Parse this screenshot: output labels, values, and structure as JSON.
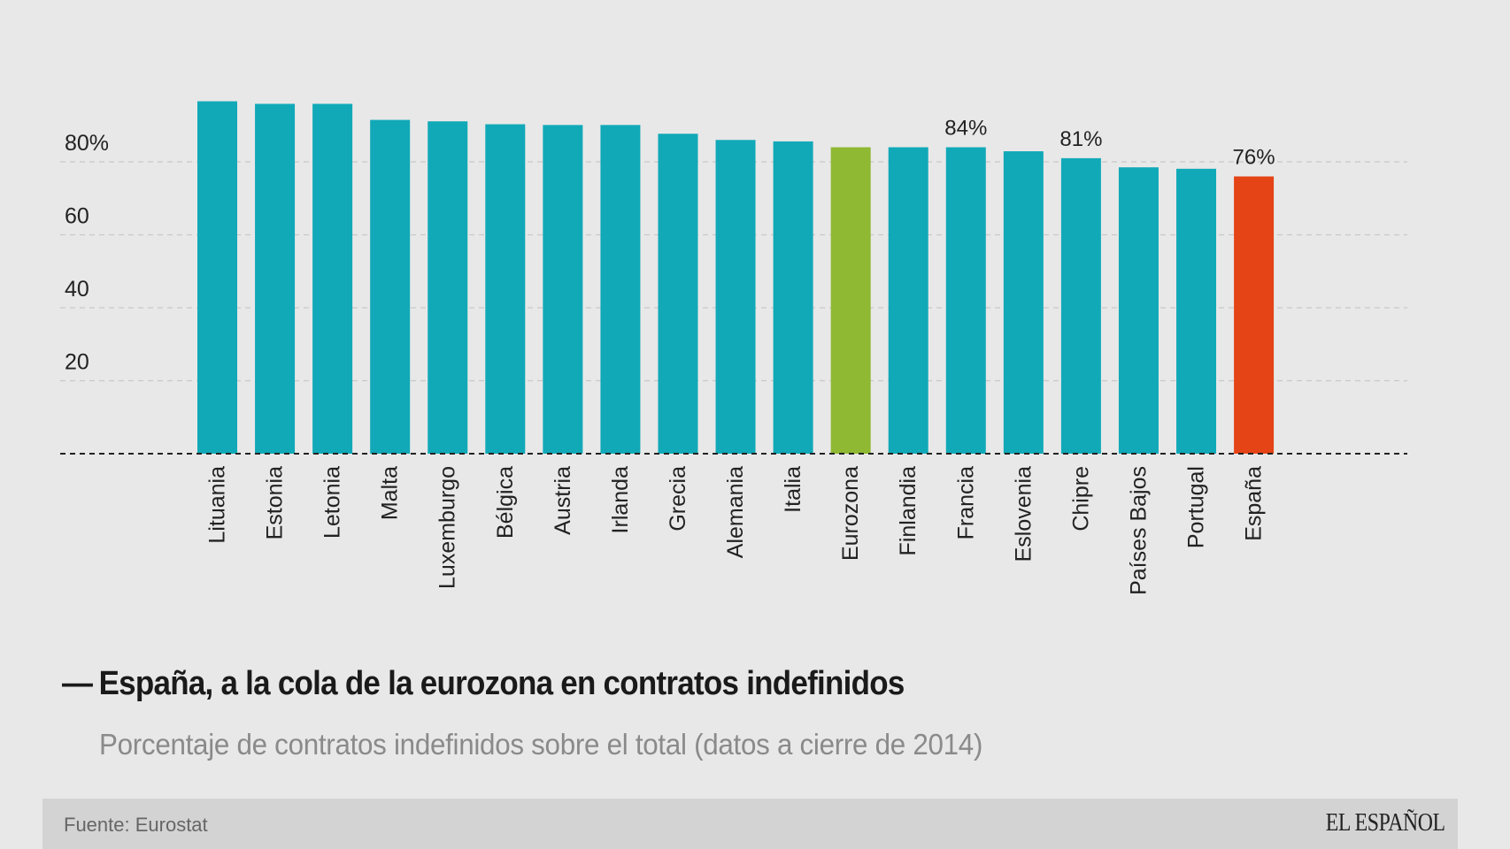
{
  "chart_data": {
    "type": "bar",
    "title": "España, a la cola de la eurozona en contratos indefinidos",
    "subtitle": "Porcentaje de contratos indefinidos sobre el total (datos a cierre de 2014)",
    "xlabel": "",
    "ylabel": "",
    "ylim": [
      0,
      100
    ],
    "yticks": [
      20,
      40,
      60,
      80
    ],
    "ytick_labels": [
      "20",
      "40",
      "60",
      "80%"
    ],
    "grid": true,
    "categories": [
      "Lituania",
      "Estonia",
      "Letonia",
      "Malta",
      "Luxemburgo",
      "Bélgica",
      "Austria",
      "Irlanda",
      "Grecia",
      "Alemania",
      "Italia",
      "Eurozona",
      "Finlandia",
      "Francia",
      "Eslovenia",
      "Chipre",
      "Países Bajos",
      "Portugal",
      "España"
    ],
    "values": [
      96.6,
      95.9,
      95.9,
      91.5,
      91.1,
      90.3,
      90.1,
      90.1,
      87.7,
      86.0,
      85.6,
      84.0,
      84.0,
      84.0,
      82.9,
      81.0,
      78.5,
      78.1,
      76.0
    ],
    "data_labels": {
      "Francia": "84%",
      "Chipre": "81%",
      "España": "76%"
    },
    "highlight": {
      "Eurozona": "green",
      "España": "red"
    },
    "colors": {
      "default": "#11a9b8",
      "green": "#8fb833",
      "red": "#e54416"
    }
  },
  "header": {
    "title_dash": "—",
    "title": "España, a la cola de la eurozona en contratos indefinidos",
    "subtitle": "Porcentaje de contratos indefinidos sobre el total (datos a cierre de 2014)"
  },
  "footer": {
    "source": "Fuente: Eurostat",
    "brand": "EL ESPAÑOL"
  }
}
